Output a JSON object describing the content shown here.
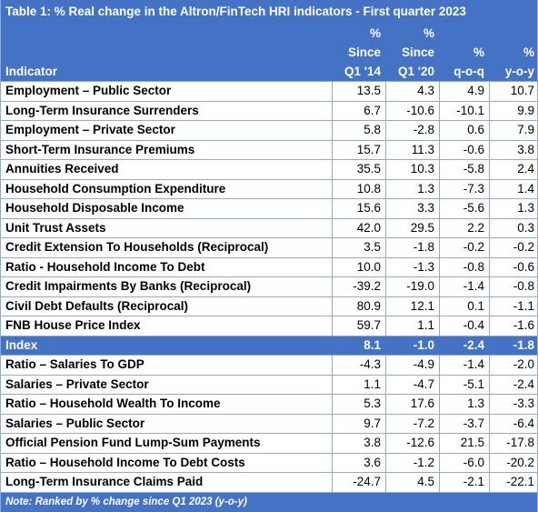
{
  "title": "Table 1: % Real change in the Altron/FinTech HRI indicators - First quarter 2023",
  "header": {
    "indicator": "Indicator",
    "col1": [
      "%",
      "Since",
      "Q1 '14"
    ],
    "col2": [
      "%",
      "Since",
      "Q1 '20"
    ],
    "col3": [
      "%",
      "q-o-q"
    ],
    "col4": [
      "%",
      "y-o-y"
    ]
  },
  "rows": [
    {
      "name": "Employment – Public Sector",
      "v1": "13.5",
      "v2": "4.3",
      "v3": "4.9",
      "v4": "10.7"
    },
    {
      "name": "Long-Term Insurance Surrenders",
      "v1": "6.7",
      "v2": "-10.6",
      "v3": "-10.1",
      "v4": "9.9"
    },
    {
      "name": "Employment – Private Sector",
      "v1": "5.8",
      "v2": "-2.8",
      "v3": "0.6",
      "v4": "7.9"
    },
    {
      "name": "Short-Term Insurance Premiums",
      "v1": "15.7",
      "v2": "11.3",
      "v3": "-0.6",
      "v4": "3.8"
    },
    {
      "name": "Annuities Received",
      "v1": "35.5",
      "v2": "10.3",
      "v3": "-5.8",
      "v4": "2.4"
    },
    {
      "name": "Household Consumption Expenditure",
      "v1": "10.8",
      "v2": "1.3",
      "v3": "-7.3",
      "v4": "1.4"
    },
    {
      "name": "Household Disposable Income",
      "v1": "15.6",
      "v2": "3.3",
      "v3": "-5.6",
      "v4": "1.3"
    },
    {
      "name": "Unit Trust Assets",
      "v1": "42.0",
      "v2": "29.5",
      "v3": "2.2",
      "v4": "0.3"
    },
    {
      "name": "Credit Extension To Households (Reciprocal)",
      "v1": "3.5",
      "v2": "-1.8",
      "v3": "-0.2",
      "v4": "-0.2"
    },
    {
      "name": "Ratio - Household Income To Debt",
      "v1": "10.0",
      "v2": "-1.3",
      "v3": "-0.8",
      "v4": "-0.6"
    },
    {
      "name": "Credit Impairments By Banks (Reciprocal)",
      "v1": "-39.2",
      "v2": "-19.0",
      "v3": "-1.4",
      "v4": "-0.8"
    },
    {
      "name": "Civil Debt Defaults (Reciprocal)",
      "v1": "80.9",
      "v2": "12.1",
      "v3": "0.1",
      "v4": "-1.1"
    },
    {
      "name": "FNB House Price Index",
      "v1": "59.7",
      "v2": "1.1",
      "v3": "-0.4",
      "v4": "-1.6"
    },
    {
      "name": "Index",
      "v1": "8.1",
      "v2": "-1.0",
      "v3": "-2.4",
      "v4": "-1.8",
      "highlight": true
    },
    {
      "name": "Ratio – Salaries To GDP",
      "v1": "-4.3",
      "v2": "-4.9",
      "v3": "-1.4",
      "v4": "-2.0"
    },
    {
      "name": "Salaries – Private Sector",
      "v1": "1.1",
      "v2": "-4.7",
      "v3": "-5.1",
      "v4": "-2.4"
    },
    {
      "name": "Ratio – Household Wealth To Income",
      "v1": "5.3",
      "v2": "17.6",
      "v3": "1.3",
      "v4": "-3.3"
    },
    {
      "name": "Salaries – Public Sector",
      "v1": "9.7",
      "v2": "-7.2",
      "v3": "-3.7",
      "v4": "-6.4"
    },
    {
      "name": "Official Pension Fund Lump-Sum Payments",
      "v1": "3.8",
      "v2": "-12.6",
      "v3": "21.5",
      "v4": "-17.8"
    },
    {
      "name": "Ratio – Household Income To Debt Costs",
      "v1": "3.6",
      "v2": "-1.2",
      "v3": "-6.0",
      "v4": "-20.2"
    },
    {
      "name": "Long-Term Insurance Claims Paid",
      "v1": "-24.7",
      "v2": "4.5",
      "v3": "-2.1",
      "v4": "-22.1"
    }
  ],
  "note": "Note: Ranked by % change since Q1 2023 (y-o-y)",
  "colors": {
    "header_bg": "#4472c4",
    "border": "#8ea9db",
    "text": "#000000"
  }
}
